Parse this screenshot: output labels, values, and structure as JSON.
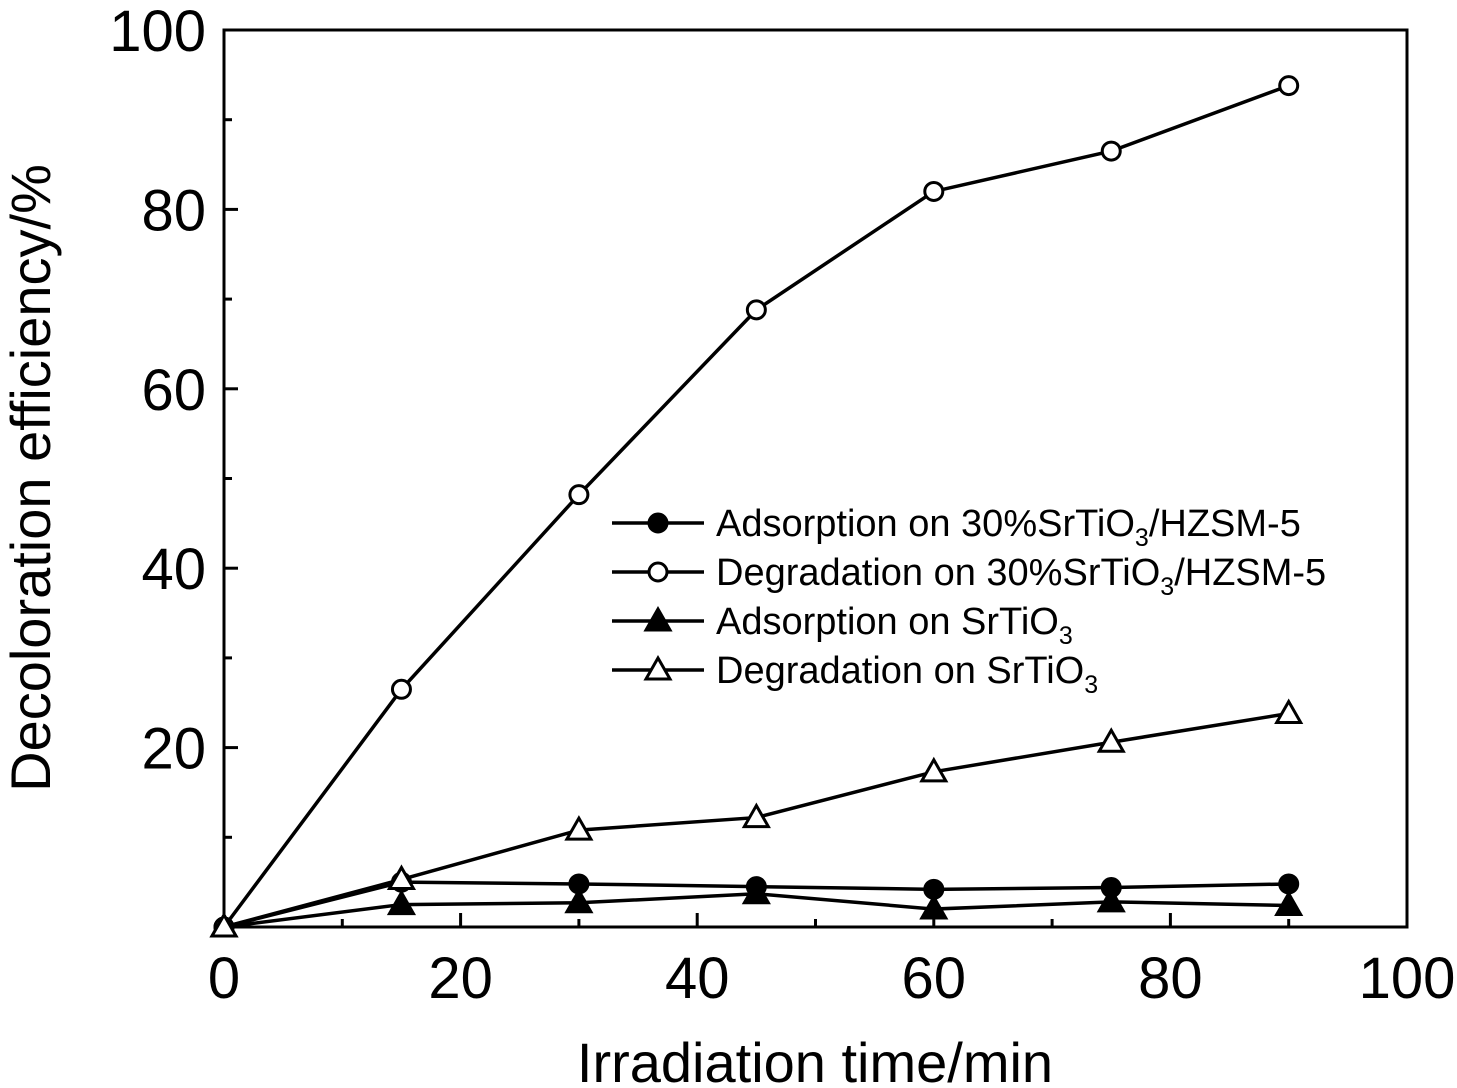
{
  "chart_data": {
    "type": "line",
    "xlabel": "Irradiation time/min",
    "ylabel": "Decoloration efficiency/%",
    "xlim": [
      0,
      100
    ],
    "ylim": [
      0,
      100
    ],
    "x_ticks": [
      "0",
      "20",
      "40",
      "60",
      "80",
      "100"
    ],
    "y_ticks": [
      "20",
      "40",
      "60",
      "80",
      "100"
    ],
    "x_tick_values": [
      0,
      20,
      40,
      60,
      80,
      100
    ],
    "y_tick_values": [
      20,
      40,
      60,
      80,
      100
    ],
    "grid": false,
    "legend_position": "center-right",
    "x": [
      0,
      15,
      30,
      45,
      60,
      75,
      90
    ],
    "series": [
      {
        "name": "Adsorption on 30%SrTiO3/HZSM-5",
        "legend": {
          "pre": "Adsorption on 30%SrTiO",
          "sub": "3",
          "post": "/HZSM-5"
        },
        "marker": "circle-filled",
        "values": [
          0,
          5.0,
          4.8,
          4.5,
          4.2,
          4.4,
          4.8
        ]
      },
      {
        "name": "Degradation on 30%SrTiO3/HZSM-5",
        "legend": {
          "pre": "Degradation on 30%SrTiO",
          "sub": "3",
          "post": "/HZSM-5"
        },
        "marker": "circle-open",
        "values": [
          0,
          26.5,
          48.2,
          68.8,
          82.0,
          86.5,
          93.8
        ]
      },
      {
        "name": "Adsorption on SrTiO3",
        "legend": {
          "pre": "Adsorption on SrTiO",
          "sub": "3",
          "post": ""
        },
        "marker": "triangle-filled",
        "values": [
          0,
          2.5,
          2.7,
          3.7,
          2.0,
          2.8,
          2.4
        ]
      },
      {
        "name": "Degradation on SrTiO3",
        "legend": {
          "pre": "Degradation on SrTiO",
          "sub": "3",
          "post": ""
        },
        "marker": "triangle-open",
        "values": [
          0,
          5.3,
          10.8,
          12.2,
          17.3,
          20.6,
          23.8
        ]
      }
    ]
  }
}
